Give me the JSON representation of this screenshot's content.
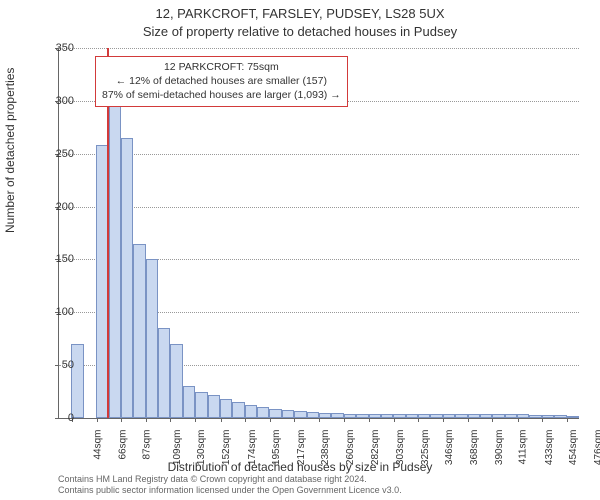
{
  "title_main": "12, PARKCROFT, FARSLEY, PUDSEY, LS28 5UX",
  "title_sub": "Size of property relative to detached houses in Pudsey",
  "ylabel": "Number of detached properties",
  "xlabel": "Distribution of detached houses by size in Pudsey",
  "chart": {
    "type": "histogram",
    "bar_fill": "#c9d8f0",
    "bar_border": "#7a93c4",
    "grid_color": "#999999",
    "axis_color": "#666666",
    "background": "#ffffff",
    "reference_line_color": "#d23a3a",
    "reference_x": 75,
    "ylim": [
      0,
      350
    ],
    "ytick_step": 50,
    "x_start": 33,
    "x_bin_width": 10.8,
    "x_tick_labels": [
      "44sqm",
      "66sqm",
      "87sqm",
      "109sqm",
      "130sqm",
      "152sqm",
      "174sqm",
      "195sqm",
      "217sqm",
      "238sqm",
      "260sqm",
      "282sqm",
      "303sqm",
      "325sqm",
      "346sqm",
      "368sqm",
      "390sqm",
      "411sqm",
      "433sqm",
      "454sqm",
      "476sqm"
    ],
    "x_tick_values": [
      44,
      66,
      87,
      109,
      130,
      152,
      174,
      195,
      217,
      238,
      260,
      282,
      303,
      325,
      346,
      368,
      390,
      411,
      433,
      454,
      476
    ],
    "values": [
      0,
      70,
      0,
      258,
      295,
      265,
      165,
      150,
      85,
      70,
      30,
      25,
      22,
      18,
      15,
      12,
      10,
      9,
      8,
      7,
      6,
      5,
      5,
      4,
      4,
      4,
      4,
      4,
      4,
      4,
      4,
      4,
      4,
      4,
      4,
      4,
      4,
      4,
      3,
      3,
      3,
      2
    ]
  },
  "annotation": {
    "line1": "12 PARKCROFT: 75sqm",
    "line2": "← 12% of detached houses are smaller (157)",
    "line3": "87% of semi-detached houses are larger (1,093) →",
    "border_color": "#d23a3a"
  },
  "footer": {
    "line1": "Contains HM Land Registry data © Crown copyright and database right 2024.",
    "line2": "Contains public sector information licensed under the Open Government Licence v3.0."
  }
}
